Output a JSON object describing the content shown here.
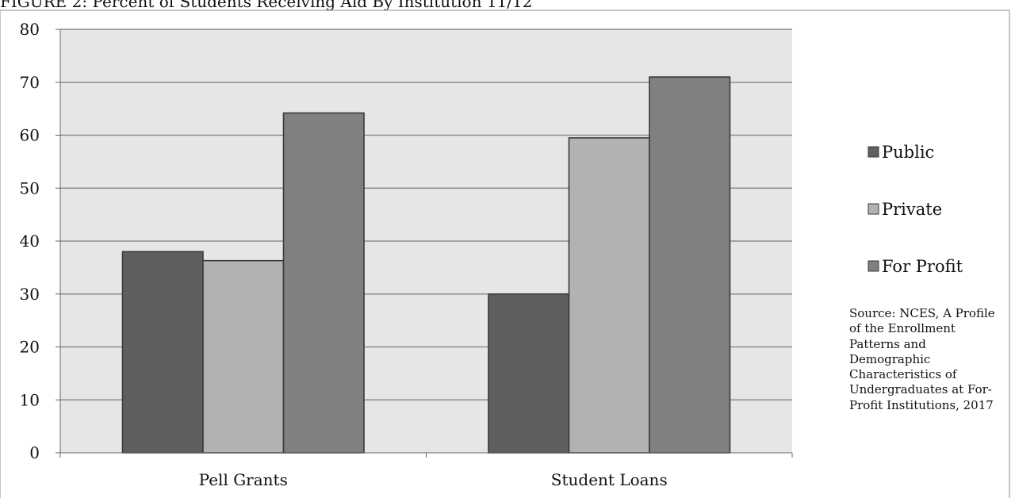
{
  "title": "FIGURE 2: Percent of Students Receiving Aid By Institution 11/12",
  "source": "Source: NCES, A Profile of the Enrollment Patterns and Demographic Characteristics of Undergraduates at For-Profit Institutions, 2017",
  "colors": {
    "plot_bg": "#e6e6e6",
    "gridline": "#8c8c8c",
    "bar_stroke": "#3a3a3a"
  },
  "chart_data": {
    "type": "bar",
    "categories": [
      "Pell Grants",
      "Student Loans"
    ],
    "series": [
      {
        "name": "Public",
        "values": [
          38,
          30
        ],
        "color": "#5f5f5f"
      },
      {
        "name": "Private",
        "values": [
          36.3,
          59.5
        ],
        "color": "#b2b2b2"
      },
      {
        "name": "For Profit",
        "values": [
          64.2,
          71
        ],
        "color": "#808080"
      }
    ],
    "ylim": [
      0,
      80
    ],
    "yticks": [
      "0",
      "10",
      "20",
      "30",
      "40",
      "50",
      "60",
      "70",
      "80"
    ],
    "grid": true,
    "legend_position": "right"
  }
}
